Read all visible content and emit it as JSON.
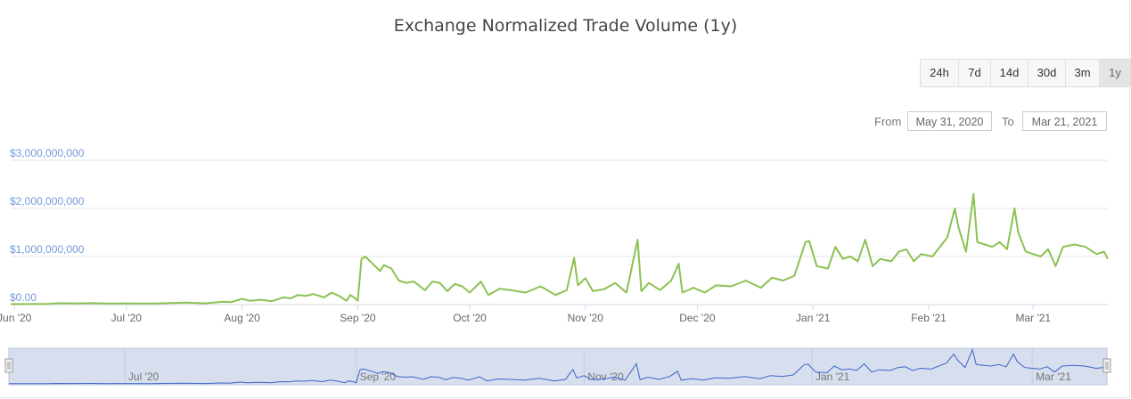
{
  "header": {
    "title": "Exchange Normalized Trade Volume (1y)"
  },
  "range_selector": {
    "buttons": [
      "24h",
      "7d",
      "14d",
      "30d",
      "3m",
      "1y"
    ],
    "active": "1y",
    "from_label": "From",
    "from_value": "May 31, 2020",
    "to_label": "To",
    "to_value": "Mar 21, 2021"
  },
  "colors": {
    "line": "#8cc152",
    "navigator_line": "#3a65c9",
    "navigator_fill": "#d7deee",
    "ylabel": "#6f9bd4"
  },
  "chart_data": {
    "type": "line",
    "title": "Exchange Normalized Trade Volume (1y)",
    "xlabel": "",
    "ylabel": "",
    "x_range": [
      "2020-05-31",
      "2021-03-21"
    ],
    "ylim": [
      0,
      3000000000
    ],
    "y_ticks": [
      {
        "value": 0,
        "label": "$0.00"
      },
      {
        "value": 1000000000,
        "label": "$1,000,000,000"
      },
      {
        "value": 2000000000,
        "label": "$2,000,000,000"
      },
      {
        "value": 3000000000,
        "label": "$3,000,000,000"
      }
    ],
    "x_ticks": [
      {
        "date": "2020-06-01",
        "label": "Jun '20"
      },
      {
        "date": "2020-07-01",
        "label": "Jul '20"
      },
      {
        "date": "2020-08-01",
        "label": "Aug '20"
      },
      {
        "date": "2020-09-01",
        "label": "Sep '20"
      },
      {
        "date": "2020-10-01",
        "label": "Oct '20"
      },
      {
        "date": "2020-11-01",
        "label": "Nov '20"
      },
      {
        "date": "2020-12-01",
        "label": "Dec '20"
      },
      {
        "date": "2021-01-01",
        "label": "Jan '21"
      },
      {
        "date": "2021-02-01",
        "label": "Feb '21"
      },
      {
        "date": "2021-03-01",
        "label": "Mar '21"
      }
    ],
    "navigator_ticks": [
      {
        "date": "2020-07-01",
        "label": "Jul '20"
      },
      {
        "date": "2020-09-01",
        "label": "Sep '20"
      },
      {
        "date": "2020-11-01",
        "label": "Nov '20"
      },
      {
        "date": "2021-01-01",
        "label": "Jan '21"
      },
      {
        "date": "2021-03-01",
        "label": "Mar '21"
      }
    ],
    "grid": true,
    "legend": "none",
    "series": [
      {
        "points": [
          [
            "2020-05-31",
            10000000
          ],
          [
            "2020-06-05",
            12000000
          ],
          [
            "2020-06-10",
            15000000
          ],
          [
            "2020-06-13",
            30000000
          ],
          [
            "2020-06-17",
            25000000
          ],
          [
            "2020-06-22",
            30000000
          ],
          [
            "2020-06-27",
            20000000
          ],
          [
            "2020-07-01",
            25000000
          ],
          [
            "2020-07-07",
            20000000
          ],
          [
            "2020-07-12",
            30000000
          ],
          [
            "2020-07-17",
            40000000
          ],
          [
            "2020-07-22",
            25000000
          ],
          [
            "2020-07-27",
            60000000
          ],
          [
            "2020-07-29",
            50000000
          ],
          [
            "2020-08-01",
            120000000
          ],
          [
            "2020-08-03",
            80000000
          ],
          [
            "2020-08-06",
            100000000
          ],
          [
            "2020-08-09",
            70000000
          ],
          [
            "2020-08-12",
            150000000
          ],
          [
            "2020-08-14",
            130000000
          ],
          [
            "2020-08-16",
            200000000
          ],
          [
            "2020-08-18",
            180000000
          ],
          [
            "2020-08-20",
            220000000
          ],
          [
            "2020-08-23",
            150000000
          ],
          [
            "2020-08-25",
            250000000
          ],
          [
            "2020-08-27",
            180000000
          ],
          [
            "2020-08-29",
            80000000
          ],
          [
            "2020-08-30",
            200000000
          ],
          [
            "2020-08-31",
            150000000
          ],
          [
            "2020-09-01",
            80000000
          ],
          [
            "2020-09-02",
            950000000
          ],
          [
            "2020-09-03",
            1000000000
          ],
          [
            "2020-09-05",
            850000000
          ],
          [
            "2020-09-07",
            700000000
          ],
          [
            "2020-09-08",
            820000000
          ],
          [
            "2020-09-10",
            750000000
          ],
          [
            "2020-09-12",
            500000000
          ],
          [
            "2020-09-14",
            450000000
          ],
          [
            "2020-09-16",
            480000000
          ],
          [
            "2020-09-19",
            300000000
          ],
          [
            "2020-09-21",
            480000000
          ],
          [
            "2020-09-23",
            450000000
          ],
          [
            "2020-09-25",
            280000000
          ],
          [
            "2020-09-27",
            430000000
          ],
          [
            "2020-09-29",
            380000000
          ],
          [
            "2020-10-01",
            250000000
          ],
          [
            "2020-10-04",
            480000000
          ],
          [
            "2020-10-06",
            200000000
          ],
          [
            "2020-10-09",
            330000000
          ],
          [
            "2020-10-12",
            300000000
          ],
          [
            "2020-10-16",
            250000000
          ],
          [
            "2020-10-20",
            380000000
          ],
          [
            "2020-10-24",
            200000000
          ],
          [
            "2020-10-27",
            300000000
          ],
          [
            "2020-10-29",
            970000000
          ],
          [
            "2020-10-30",
            400000000
          ],
          [
            "2020-11-01",
            550000000
          ],
          [
            "2020-11-03",
            280000000
          ],
          [
            "2020-11-06",
            320000000
          ],
          [
            "2020-11-09",
            450000000
          ],
          [
            "2020-11-12",
            250000000
          ],
          [
            "2020-11-15",
            1350000000
          ],
          [
            "2020-11-16",
            280000000
          ],
          [
            "2020-11-18",
            450000000
          ],
          [
            "2020-11-21",
            300000000
          ],
          [
            "2020-11-24",
            500000000
          ],
          [
            "2020-11-26",
            850000000
          ],
          [
            "2020-11-27",
            250000000
          ],
          [
            "2020-11-30",
            350000000
          ],
          [
            "2020-12-03",
            250000000
          ],
          [
            "2020-12-06",
            400000000
          ],
          [
            "2020-12-10",
            380000000
          ],
          [
            "2020-12-14",
            500000000
          ],
          [
            "2020-12-18",
            350000000
          ],
          [
            "2020-12-21",
            560000000
          ],
          [
            "2020-12-24",
            500000000
          ],
          [
            "2020-12-27",
            600000000
          ],
          [
            "2020-12-30",
            1300000000
          ],
          [
            "2020-12-31",
            1320000000
          ],
          [
            "2021-01-02",
            800000000
          ],
          [
            "2021-01-05",
            750000000
          ],
          [
            "2021-01-07",
            1200000000
          ],
          [
            "2021-01-09",
            950000000
          ],
          [
            "2021-01-11",
            1000000000
          ],
          [
            "2021-01-13",
            900000000
          ],
          [
            "2021-01-15",
            1350000000
          ],
          [
            "2021-01-17",
            800000000
          ],
          [
            "2021-01-19",
            950000000
          ],
          [
            "2021-01-22",
            900000000
          ],
          [
            "2021-01-24",
            1100000000
          ],
          [
            "2021-01-26",
            1150000000
          ],
          [
            "2021-01-28",
            900000000
          ],
          [
            "2021-01-30",
            1050000000
          ],
          [
            "2021-02-02",
            1000000000
          ],
          [
            "2021-02-04",
            1200000000
          ],
          [
            "2021-02-06",
            1400000000
          ],
          [
            "2021-02-08",
            2000000000
          ],
          [
            "2021-02-09",
            1600000000
          ],
          [
            "2021-02-11",
            1100000000
          ],
          [
            "2021-02-13",
            2300000000
          ],
          [
            "2021-02-14",
            1300000000
          ],
          [
            "2021-02-16",
            1250000000
          ],
          [
            "2021-02-18",
            1200000000
          ],
          [
            "2021-02-20",
            1300000000
          ],
          [
            "2021-02-22",
            1150000000
          ],
          [
            "2021-02-24",
            2000000000
          ],
          [
            "2021-02-25",
            1500000000
          ],
          [
            "2021-02-27",
            1100000000
          ],
          [
            "2021-03-01",
            1050000000
          ],
          [
            "2021-03-03",
            1000000000
          ],
          [
            "2021-03-05",
            1150000000
          ],
          [
            "2021-03-07",
            800000000
          ],
          [
            "2021-03-09",
            1200000000
          ],
          [
            "2021-03-12",
            1250000000
          ],
          [
            "2021-03-15",
            1200000000
          ],
          [
            "2021-03-18",
            1050000000
          ],
          [
            "2021-03-20",
            1100000000
          ],
          [
            "2021-03-21",
            950000000
          ]
        ]
      }
    ]
  }
}
